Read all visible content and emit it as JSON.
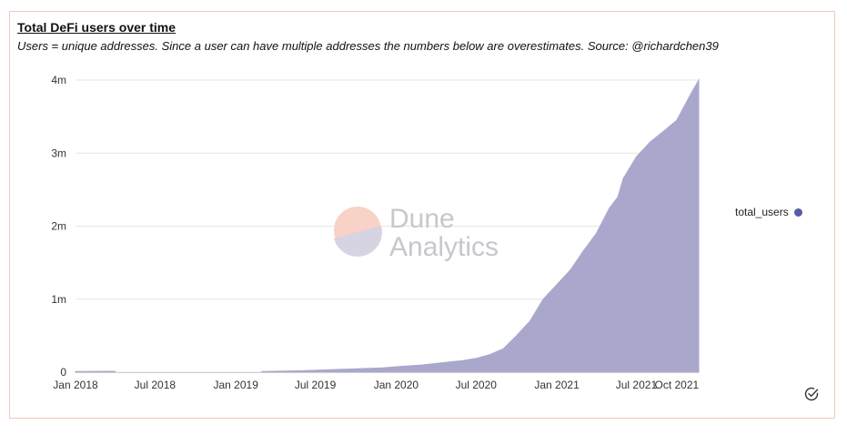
{
  "header": {
    "title": "Total DeFi users over time",
    "subtitle": "Users = unique addresses. Since a user can have multiple addresses the numbers below are overestimates. Source: @richardchen39"
  },
  "watermark": {
    "line1": "Dune",
    "line2": "Analytics"
  },
  "legend": {
    "label": "total_users",
    "color": "#5b5aa6"
  },
  "icons": {
    "status": "check-circle-icon"
  },
  "colors": {
    "area_fill": "#a9a8cc",
    "gridline": "#e6e6e6",
    "card_border": "#f1c9bd"
  },
  "chart_data": {
    "type": "area",
    "series": [
      {
        "name": "total_users",
        "x": [
          "2018-01-01",
          "2018-04-01",
          "2018-05-15",
          "2019-01-01",
          "2019-03-01",
          "2019-06-01",
          "2019-09-01",
          "2019-12-01",
          "2020-01-01",
          "2020-03-01",
          "2020-05-01",
          "2020-06-01",
          "2020-07-01",
          "2020-08-01",
          "2020-09-01",
          "2020-10-01",
          "2020-11-01",
          "2020-12-01",
          "2021-01-01",
          "2021-02-01",
          "2021-03-01",
          "2021-04-01",
          "2021-05-01",
          "2021-05-20",
          "2021-06-01",
          "2021-07-01",
          "2021-08-01",
          "2021-09-01",
          "2021-10-01",
          "2021-11-01",
          "2021-11-20"
        ],
        "y": [
          10000,
          12000,
          null,
          null,
          10000,
          20000,
          40000,
          60000,
          75000,
          100000,
          140000,
          160000,
          190000,
          240000,
          320000,
          500000,
          700000,
          1000000,
          1200000,
          1400000,
          1650000,
          1900000,
          2250000,
          2400000,
          2650000,
          2950000,
          3150000,
          3300000,
          3450000,
          3800000,
          4000000
        ]
      }
    ],
    "x_ticks": [
      "Jan 2018",
      "Jul 2018",
      "Jan 2019",
      "Jul 2019",
      "Jan 2020",
      "Jul 2020",
      "Jan 2021",
      "Jul 2021",
      "Oct 2021"
    ],
    "y_ticks": [
      "0",
      "1m",
      "2m",
      "3m",
      "4m"
    ],
    "ylim": [
      0,
      4000000
    ],
    "xlim": [
      "2018-01-01",
      "2021-11-20"
    ],
    "grid": true,
    "legend_position": "right"
  }
}
